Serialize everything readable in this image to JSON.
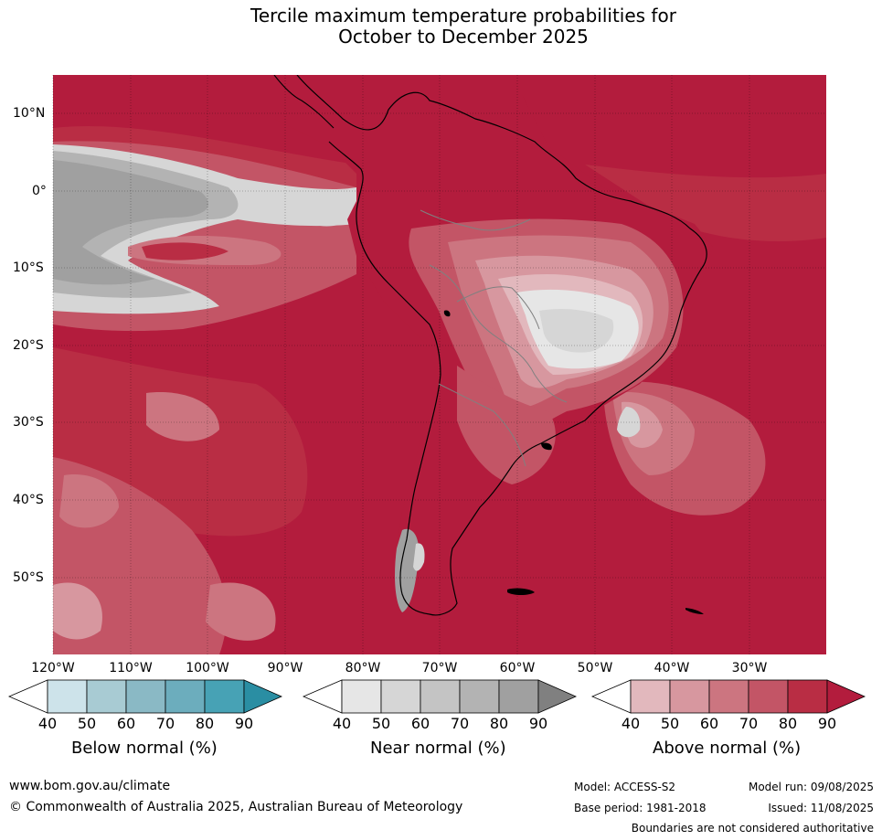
{
  "title_line1": "Tercile maximum temperature probabilities for",
  "title_line2": "October to December 2025",
  "lat_labels": [
    "10°N",
    "0°",
    "10°S",
    "20°S",
    "30°S",
    "40°S",
    "50°S"
  ],
  "lon_labels": [
    "120°W",
    "110°W",
    "100°W",
    "90°W",
    "80°W",
    "70°W",
    "60°W",
    "50°W",
    "40°W",
    "30°W"
  ],
  "legends": [
    {
      "label": "Below normal (%)",
      "ticks": [
        "40",
        "50",
        "60",
        "70",
        "80",
        "90"
      ],
      "colors": [
        "#ffffff",
        "#cde3ea",
        "#a8cbd3",
        "#8ab9c5",
        "#6cadbd",
        "#47a2b5",
        "#2a8ea3"
      ]
    },
    {
      "label": "Near normal (%)",
      "ticks": [
        "40",
        "50",
        "60",
        "70",
        "80",
        "90"
      ],
      "colors": [
        "#ffffff",
        "#e6e6e6",
        "#d6d6d6",
        "#c4c4c4",
        "#b3b3b3",
        "#a0a0a0",
        "#808080"
      ]
    },
    {
      "label": "Above normal (%)",
      "ticks": [
        "40",
        "50",
        "60",
        "70",
        "80",
        "90"
      ],
      "colors": [
        "#ffffff",
        "#e2b8bd",
        "#d7979f",
        "#cc7580",
        "#c35566",
        "#b92d44",
        "#b31c3d"
      ]
    }
  ],
  "footer": {
    "website": "www.bom.gov.au/climate",
    "copyright": "© Commonwealth of Australia 2025, Australian Bureau of Meteorology",
    "model": "Model: ACCESS-S2",
    "model_run": "Model run: 09/08/2025",
    "base_period": "Base period: 1981-2018",
    "issued": "Issued: 11/08/2025",
    "boundaries": "Boundaries are not considered authoritative"
  }
}
